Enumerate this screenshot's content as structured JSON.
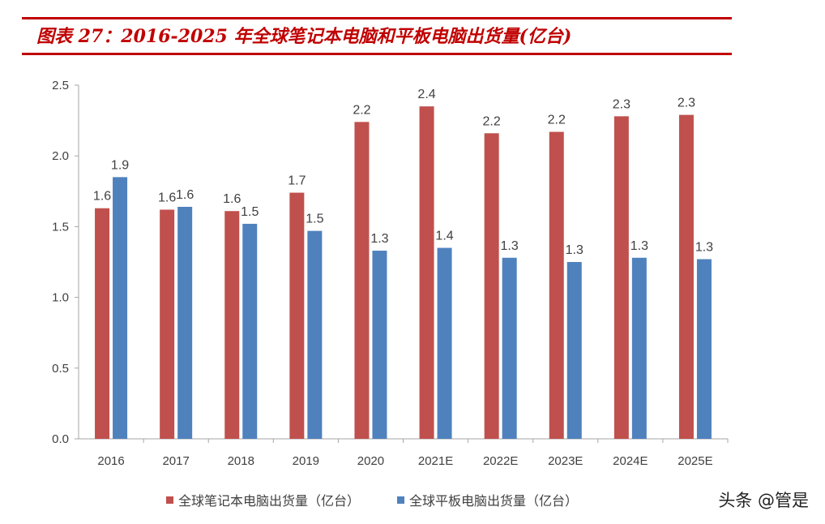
{
  "title": "图表 27：2016-2025 年全球笔记本电脑和平板电脑出货量(亿台)",
  "watermark": "头条 @管是",
  "colors": {
    "accent": "#c00000",
    "notebook": "#c0504d",
    "tablet": "#4f81bd"
  },
  "chart_data": {
    "type": "bar",
    "categories": [
      "2016",
      "2017",
      "2018",
      "2019",
      "2020",
      "2021E",
      "2022E",
      "2023E",
      "2024E",
      "2025E"
    ],
    "series": [
      {
        "name": "全球笔记本电脑出货量（亿台）",
        "values": [
          1.63,
          1.62,
          1.61,
          1.74,
          2.24,
          2.35,
          2.16,
          2.17,
          2.28,
          2.29
        ],
        "labels": [
          "1.6",
          "1.6",
          "1.6",
          "1.7",
          "2.2",
          "2.4",
          "2.2",
          "2.2",
          "2.3",
          "2.3"
        ]
      },
      {
        "name": "全球平板电脑出货量（亿台）",
        "values": [
          1.85,
          1.64,
          1.52,
          1.47,
          1.33,
          1.35,
          1.28,
          1.25,
          1.28,
          1.27
        ],
        "labels": [
          "1.9",
          "1.6",
          "1.5",
          "1.5",
          "1.3",
          "1.4",
          "1.3",
          "1.3",
          "1.3",
          "1.3"
        ]
      }
    ],
    "yticks": [
      "0.0",
      "0.5",
      "1.0",
      "1.5",
      "2.0",
      "2.5"
    ],
    "ylim": [
      0,
      2.5
    ],
    "grid": false,
    "legend": "bottom"
  }
}
